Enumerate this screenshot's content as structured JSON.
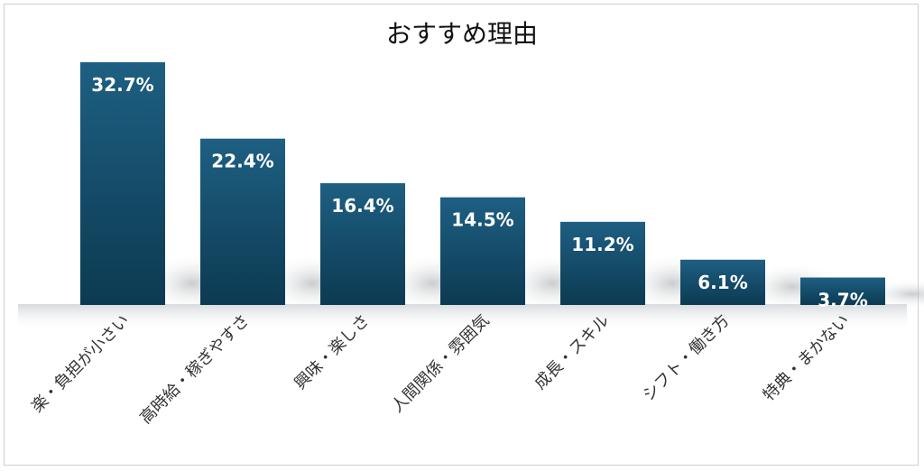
{
  "chart_data": {
    "type": "bar",
    "title": "おすすめ理由",
    "categories": [
      "楽・負担が小さい",
      "高時給・稼ぎやすさ",
      "興味・楽しさ",
      "人間関係・雰囲気",
      "成長・スキル",
      "シフト・働き方",
      "特典・まかない"
    ],
    "values": [
      32.7,
      22.4,
      16.4,
      14.5,
      11.2,
      6.1,
      3.7
    ],
    "value_labels": [
      "32.7%",
      "22.4%",
      "16.4%",
      "14.5%",
      "11.2%",
      "6.1%",
      "3.7%"
    ],
    "ylim": [
      0,
      35
    ],
    "grid": false,
    "legend": "none",
    "colors": {
      "bar_top": "#1e5f82",
      "bar_bottom": "#0c3a52",
      "label": "#ffffff"
    }
  }
}
